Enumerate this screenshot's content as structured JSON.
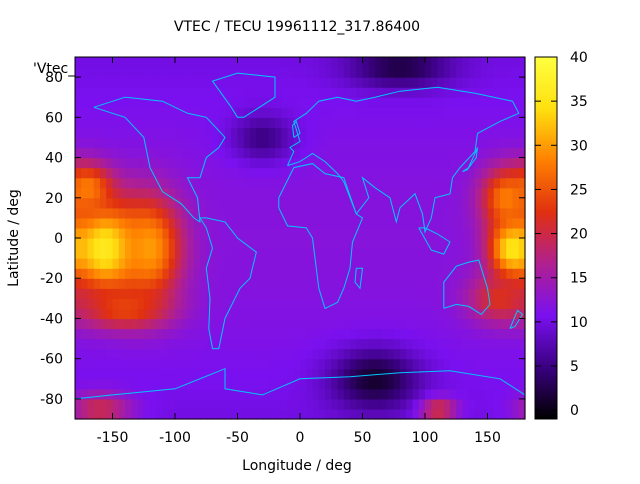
{
  "chart_data": {
    "type": "heatmap",
    "title": "VTEC / TECU 19961112_317.86400",
    "xlabel": "Longitude / deg",
    "ylabel": "Latitude / deg",
    "corner_label": "'Vtec_",
    "xlim": [
      -180,
      180
    ],
    "ylim": [
      -90,
      90
    ],
    "x_ticks": [
      "-150",
      "-100",
      "-50",
      "0",
      "50",
      "100",
      "150"
    ],
    "x_tick_values": [
      -150,
      -100,
      -50,
      0,
      50,
      100,
      150
    ],
    "y_ticks": [
      "-80",
      "-60",
      "-40",
      "-20",
      "0",
      "20",
      "40",
      "60",
      "80"
    ],
    "y_tick_values": [
      -80,
      -60,
      -40,
      -20,
      0,
      20,
      40,
      60,
      80
    ],
    "colorbar": {
      "min": -1,
      "max": 40,
      "ticks": [
        "0",
        "5",
        "10",
        "15",
        "20",
        "25",
        "30",
        "35",
        "40"
      ],
      "tick_values": [
        0,
        5,
        10,
        15,
        20,
        25,
        30,
        35,
        40
      ],
      "palette_stops": [
        "#000000",
        "#3a0080",
        "#7a10f0",
        "#b02090",
        "#e03010",
        "#ff8000",
        "#ffe010",
        "#ffff40"
      ]
    },
    "lon_step": 5,
    "lat_step": 5,
    "lat_rows_north_to_south": [
      90,
      85,
      80,
      75,
      70,
      65,
      60,
      55,
      50,
      45,
      40,
      35,
      30,
      25,
      20,
      15,
      10,
      5,
      0,
      -5,
      -10,
      -15,
      -20,
      -25,
      -30,
      -35,
      -40,
      -45,
      -50,
      -55,
      -60,
      -65,
      -70,
      -75,
      -80,
      -85
    ],
    "values_note": "VTEC grid values in TECU, rows north-to-south, columns -180..175 step 5",
    "blobs": [
      {
        "lon": -155,
        "lat": -5,
        "value": 37,
        "rlon": 30,
        "rlat": 22
      },
      {
        "lon": -120,
        "lat": -5,
        "value": 30,
        "rlon": 25,
        "rlat": 25
      },
      {
        "lon": -170,
        "lat": 25,
        "value": 28,
        "rlon": 20,
        "rlat": 12
      },
      {
        "lon": -140,
        "lat": -35,
        "value": 24,
        "rlon": 35,
        "rlat": 10
      },
      {
        "lon": 170,
        "lat": -5,
        "value": 36,
        "rlon": 18,
        "rlat": 15
      },
      {
        "lon": 165,
        "lat": 20,
        "value": 28,
        "rlon": 20,
        "rlat": 15
      },
      {
        "lon": 160,
        "lat": -30,
        "value": 22,
        "rlon": 25,
        "rlat": 12
      },
      {
        "lon": 110,
        "lat": -85,
        "value": 22,
        "rlon": 15,
        "rlat": 6
      },
      {
        "lon": -160,
        "lat": -85,
        "value": 20,
        "rlon": 25,
        "rlat": 8
      },
      {
        "lon": 60,
        "lat": -70,
        "value": 1,
        "rlon": 35,
        "rlat": 15
      },
      {
        "lon": 80,
        "lat": 85,
        "value": 2,
        "rlon": 40,
        "rlat": 10
      },
      {
        "lon": -30,
        "lat": 50,
        "value": 5,
        "rlon": 25,
        "rlat": 12
      }
    ],
    "background_value": 11,
    "grid": false
  },
  "coastline_color": "#00c8ff"
}
